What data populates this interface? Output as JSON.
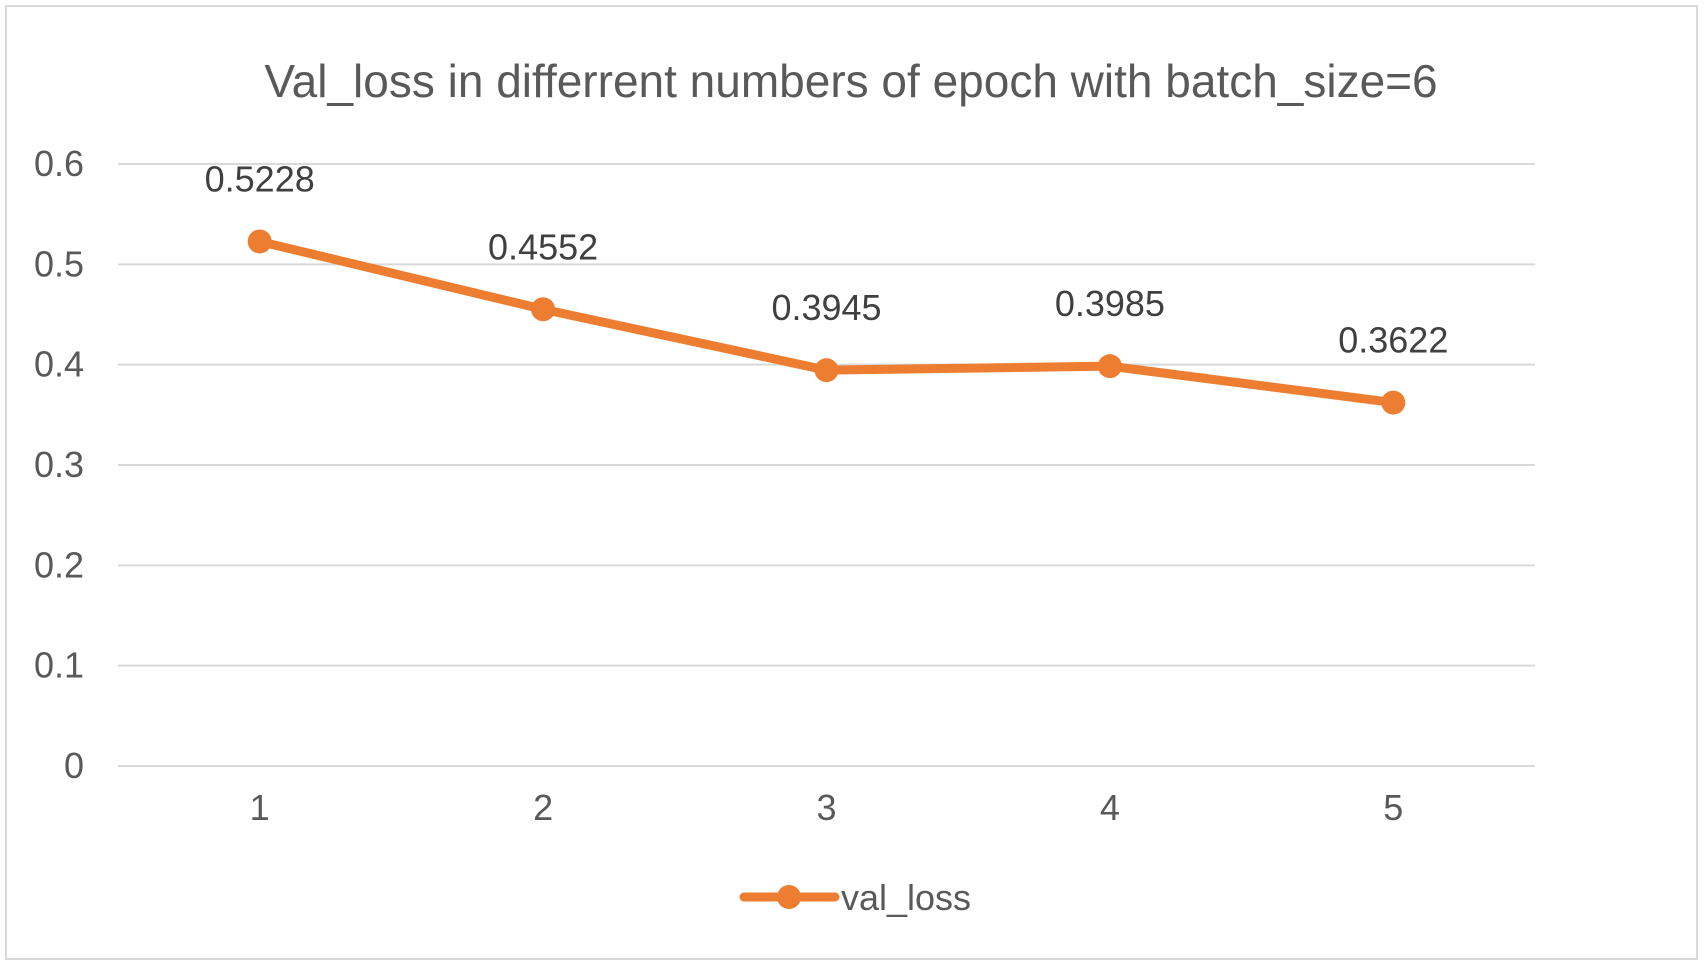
{
  "chart_data": {
    "type": "line",
    "title": "Val_loss in differrent numbers of epoch with batch_size=6",
    "categories": [
      "1",
      "2",
      "3",
      "4",
      "5"
    ],
    "series": [
      {
        "name": "val_loss",
        "values": [
          0.5228,
          0.4552,
          0.3945,
          0.3985,
          0.3622
        ],
        "data_labels": [
          "0.5228",
          "0.4552",
          "0.3945",
          "0.3985",
          "0.3622"
        ],
        "color": "#ED7D31"
      }
    ],
    "ylim": [
      0,
      0.6
    ],
    "y_ticks": [
      "0",
      "0.1",
      "0.2",
      "0.3",
      "0.4",
      "0.5",
      "0.6"
    ],
    "grid": true,
    "gridline_color": "#d9d9d9",
    "legend": "bottom"
  }
}
